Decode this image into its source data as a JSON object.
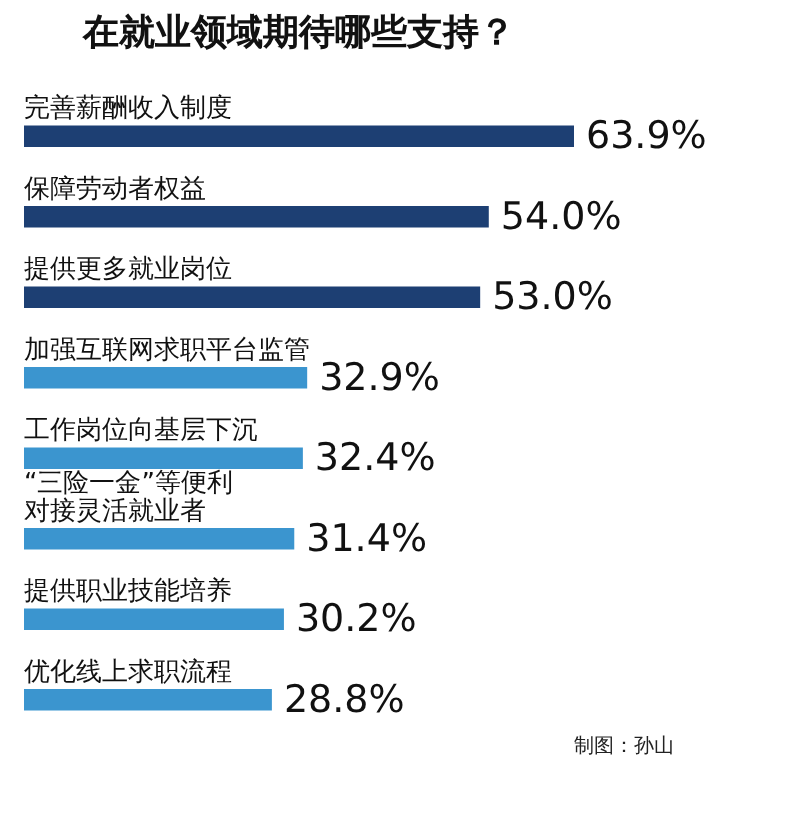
{
  "chart_data": {
    "type": "bar",
    "orientation": "horizontal",
    "title": "在就业领域期待哪些支持？",
    "categories": [
      "完善薪酬收入制度",
      "保障劳动者权益",
      "提供更多就业岗位",
      "加强互联网求职平台监管",
      "工作岗位向基层下沉",
      "“三险一金”等便利对接灵活就业者",
      "提供职业技能培养",
      "优化线上求职流程"
    ],
    "values": [
      63.9,
      54.0,
      53.0,
      32.9,
      32.4,
      31.4,
      30.2,
      28.8
    ],
    "value_labels": [
      "63.9%",
      "54.0%",
      "53.0%",
      "32.9%",
      "32.4%",
      "31.4%",
      "30.2%",
      "28.8%"
    ],
    "colors": [
      "#1d3f73",
      "#1d3f73",
      "#1d3f73",
      "#3b95cf",
      "#3b95cf",
      "#3b95cf",
      "#3b95cf",
      "#3b95cf"
    ],
    "annotations": [
      "制图：孙山"
    ]
  }
}
